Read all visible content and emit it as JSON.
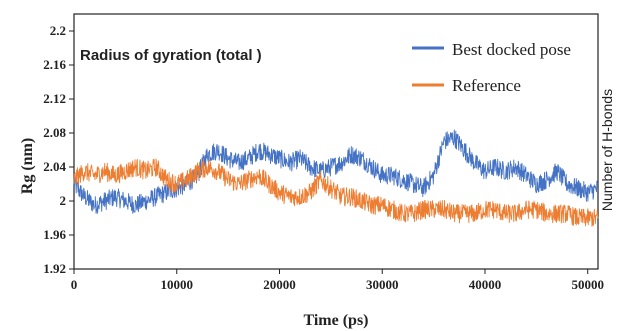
{
  "chart_data": {
    "type": "line",
    "title": "Radius of gyration (total )",
    "xlabel": "Time (ps)",
    "ylabel": "Rg (nm)",
    "y2label": "Number of H-bonds",
    "xlim": [
      0,
      51000
    ],
    "ylim": [
      1.92,
      2.22
    ],
    "xticks": [
      0,
      10000,
      20000,
      30000,
      40000,
      50000
    ],
    "yticks": [
      1.92,
      1.96,
      2,
      2.04,
      2.08,
      2.12,
      2.16,
      2.2
    ],
    "xtick_labels": [
      "0",
      "10000",
      "20000",
      "30000",
      "40000",
      "50000"
    ],
    "ytick_labels": [
      "1.92",
      "1.96",
      "2",
      "2.04",
      "2.08",
      "2.12",
      "2.16",
      "2.2"
    ],
    "grid": false,
    "legend_position": "top-right",
    "series": [
      {
        "name": "Best docked pose",
        "color": "#4472c4",
        "x": [
          0,
          1000,
          2000,
          3000,
          4000,
          5000,
          6000,
          7000,
          8000,
          9000,
          10000,
          11000,
          12000,
          13000,
          14000,
          15000,
          16000,
          17000,
          18000,
          19000,
          20000,
          21000,
          22000,
          23000,
          24000,
          25000,
          26000,
          27000,
          28000,
          29000,
          30000,
          31000,
          32000,
          33000,
          34000,
          35000,
          36000,
          37000,
          38000,
          39000,
          40000,
          41000,
          42000,
          43000,
          44000,
          45000,
          46000,
          47000,
          48000,
          49000,
          50000,
          51000
        ],
        "y": [
          2.02,
          2.005,
          1.995,
          2.0,
          2.005,
          2.0,
          1.995,
          2.0,
          2.005,
          2.01,
          2.015,
          2.02,
          2.03,
          2.055,
          2.06,
          2.05,
          2.045,
          2.05,
          2.06,
          2.055,
          2.05,
          2.045,
          2.05,
          2.04,
          2.035,
          2.04,
          2.045,
          2.055,
          2.05,
          2.04,
          2.03,
          2.03,
          2.025,
          2.02,
          2.015,
          2.03,
          2.07,
          2.075,
          2.06,
          2.045,
          2.035,
          2.04,
          2.035,
          2.04,
          2.03,
          2.02,
          2.025,
          2.035,
          2.02,
          2.015,
          2.01,
          2.015
        ]
      },
      {
        "name": "Reference",
        "color": "#ed7d31",
        "x": [
          0,
          1000,
          2000,
          3000,
          4000,
          5000,
          6000,
          7000,
          8000,
          9000,
          10000,
          11000,
          12000,
          13000,
          14000,
          15000,
          16000,
          17000,
          18000,
          19000,
          20000,
          21000,
          22000,
          23000,
          24000,
          25000,
          26000,
          27000,
          28000,
          29000,
          30000,
          31000,
          32000,
          33000,
          34000,
          35000,
          36000,
          37000,
          38000,
          39000,
          40000,
          41000,
          42000,
          43000,
          44000,
          45000,
          46000,
          47000,
          48000,
          49000,
          50000,
          51000
        ],
        "y": [
          2.025,
          2.035,
          2.03,
          2.035,
          2.03,
          2.035,
          2.04,
          2.035,
          2.04,
          2.025,
          2.02,
          2.025,
          2.035,
          2.04,
          2.035,
          2.025,
          2.02,
          2.025,
          2.03,
          2.02,
          2.01,
          2.005,
          2.005,
          2.01,
          2.025,
          2.015,
          2.005,
          2.005,
          2.0,
          1.995,
          1.995,
          1.99,
          1.985,
          1.985,
          1.99,
          1.99,
          1.99,
          1.985,
          1.985,
          1.985,
          1.99,
          1.99,
          1.985,
          1.985,
          1.99,
          1.99,
          1.985,
          1.985,
          1.985,
          1.98,
          1.98,
          1.98
        ]
      }
    ]
  }
}
